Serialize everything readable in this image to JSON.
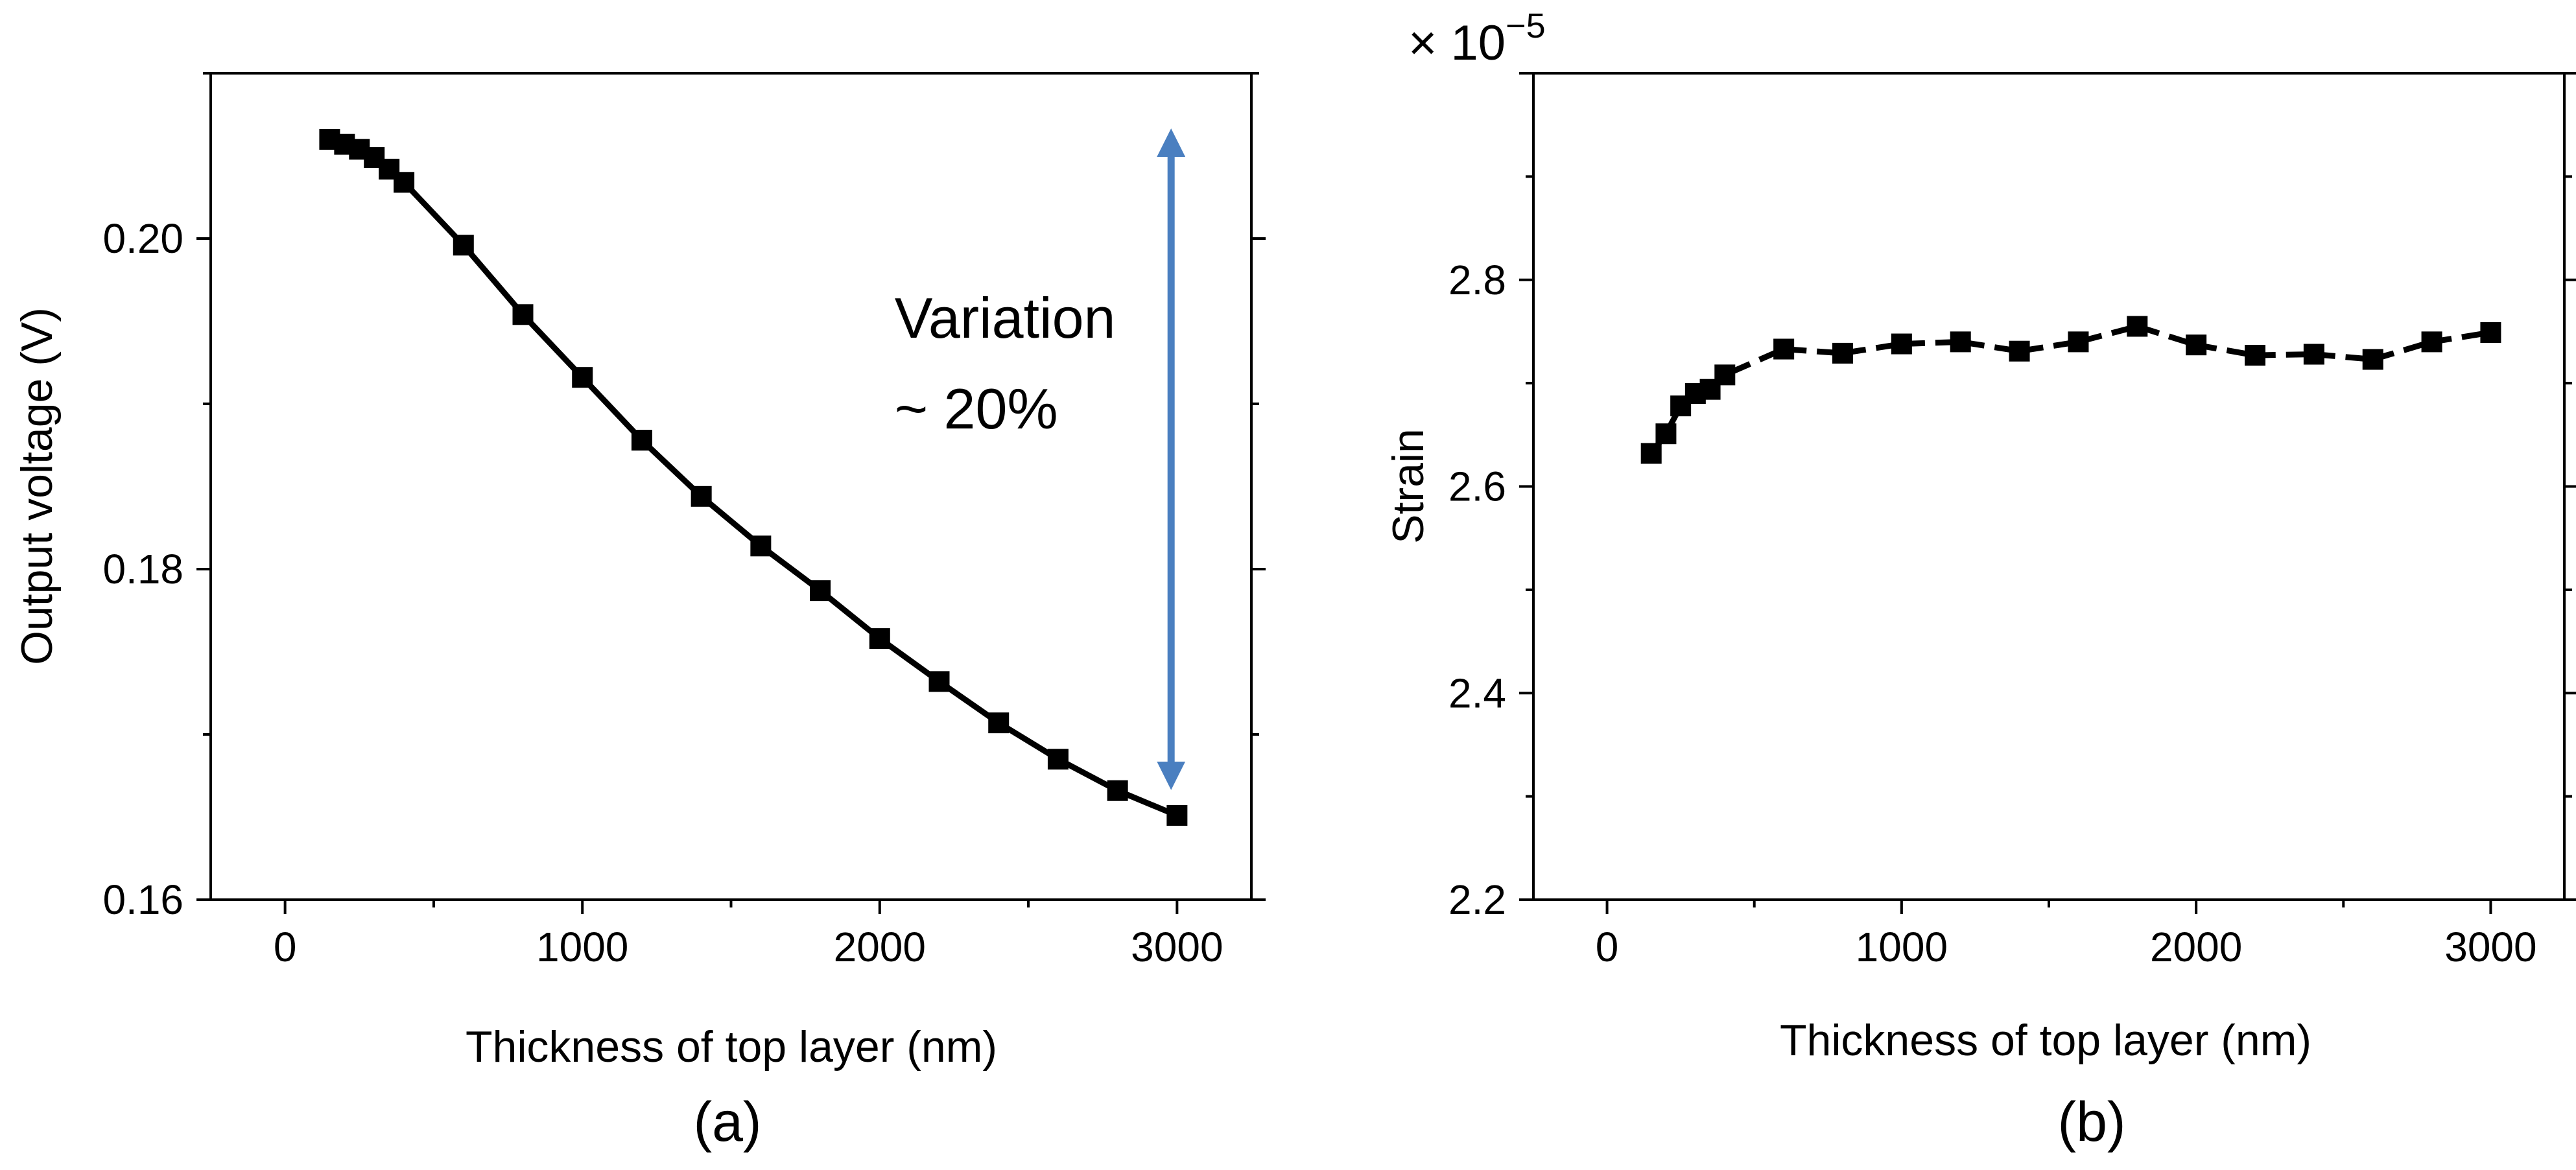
{
  "chart_data": [
    {
      "type": "line",
      "marker": "square",
      "title": "",
      "panel_label": "(a)",
      "xlabel": "Thickness of top layer (nm)",
      "ylabel": "Output voltage (V)",
      "xlim": [
        -250,
        3250
      ],
      "ylim": [
        0.16,
        0.21
      ],
      "xticks": [
        0,
        1000,
        2000,
        3000
      ],
      "xtick_labels": [
        "0",
        "1000",
        "2000",
        "3000"
      ],
      "yticks": [
        0.16,
        0.18,
        0.2
      ],
      "ytick_labels": [
        "0.16",
        "0.18",
        "0.20"
      ],
      "grid": false,
      "series": [
        {
          "name": "Output voltage",
          "color": "#000000",
          "x": [
            150,
            200,
            250,
            300,
            350,
            400,
            600,
            800,
            1000,
            1200,
            1400,
            1600,
            1800,
            2000,
            2200,
            2400,
            2600,
            2800,
            3000
          ],
          "y": [
            0.206,
            0.2057,
            0.2054,
            0.2049,
            0.2042,
            0.2034,
            0.1996,
            0.1954,
            0.1916,
            0.1878,
            0.1844,
            0.1814,
            0.1787,
            0.1758,
            0.1732,
            0.1707,
            0.1685,
            0.1666,
            0.1651
          ]
        }
      ],
      "annotations": [
        {
          "text_lines": [
            "Variation",
            "~ 20%"
          ],
          "x": 2050,
          "y": 0.194
        },
        {
          "type": "double-arrow",
          "x": 2980,
          "y_top": 0.2058,
          "y_bottom": 0.1675,
          "color": "#4a7fc0"
        }
      ]
    },
    {
      "type": "line",
      "marker": "square",
      "linestyle": "dashed",
      "title": "",
      "panel_label": "(b)",
      "xlabel": "Thickness of top layer (nm)",
      "ylabel": "Strain",
      "offset_multiplier_base": "× 10",
      "offset_multiplier_exponent": "−5",
      "xlim": [
        -250,
        3250
      ],
      "ylim": [
        2.2,
        3.0
      ],
      "xticks": [
        0,
        1000,
        2000,
        3000
      ],
      "xtick_labels": [
        "0",
        "1000",
        "2000",
        "3000"
      ],
      "yticks": [
        2.2,
        2.4,
        2.6,
        2.8
      ],
      "ytick_labels": [
        "2.2",
        "2.4",
        "2.6",
        "2.8"
      ],
      "grid": false,
      "series": [
        {
          "name": "Strain",
          "color": "#000000",
          "x": [
            150,
            200,
            250,
            300,
            350,
            400,
            600,
            800,
            1000,
            1200,
            1400,
            1600,
            1800,
            2000,
            2200,
            2400,
            2600,
            2800,
            3000
          ],
          "y": [
            2.632,
            2.651,
            2.678,
            2.69,
            2.694,
            2.708,
            2.733,
            2.729,
            2.738,
            2.74,
            2.731,
            2.74,
            2.755,
            2.737,
            2.727,
            2.728,
            2.723,
            2.74,
            2.749
          ]
        }
      ]
    }
  ]
}
